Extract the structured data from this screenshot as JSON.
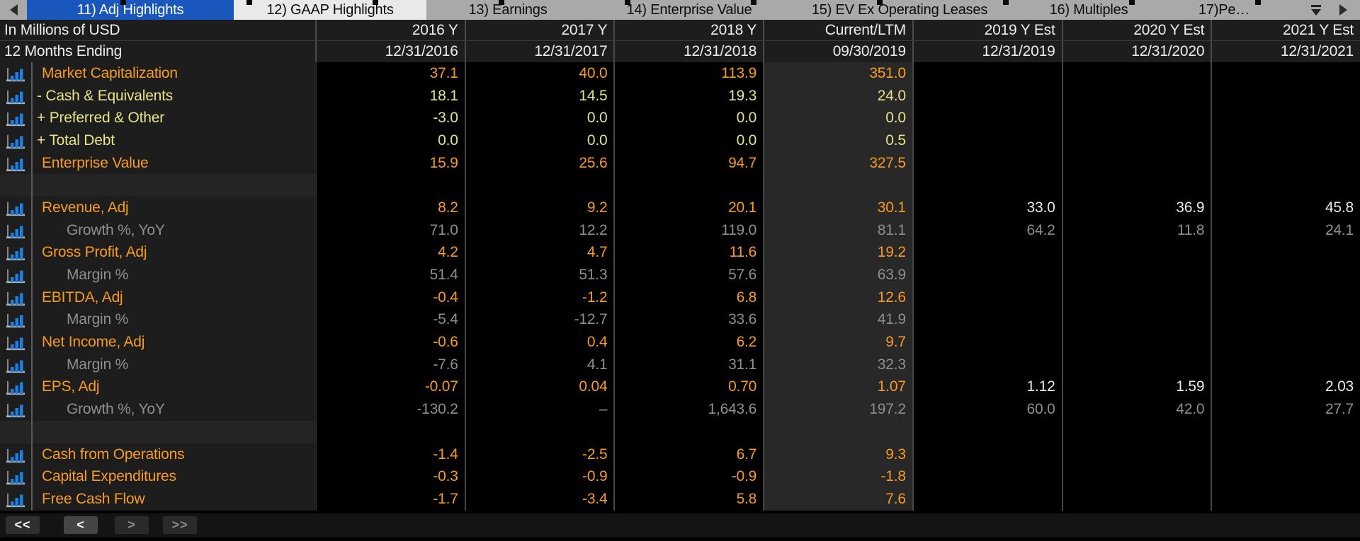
{
  "tabbar": {
    "tabs": [
      {
        "label": "11) Adj Highlights",
        "selected": true
      },
      {
        "label": "12) GAAP Highlights",
        "light": true
      },
      {
        "label": "13) Earnings"
      },
      {
        "label": "14) Enterprise Value"
      },
      {
        "label": "15) EV Ex Operating Leases"
      },
      {
        "label": "16) Multiples"
      },
      {
        "label": "17)Pe…"
      }
    ]
  },
  "table": {
    "corner": {
      "row1": "In Millions of USD",
      "row2": "12 Months Ending"
    },
    "columns": [
      {
        "year": "2016 Y",
        "date": "12/31/2016",
        "kind": "actual"
      },
      {
        "year": "2017 Y",
        "date": "12/31/2017",
        "kind": "actual"
      },
      {
        "year": "2018 Y",
        "date": "12/31/2018",
        "kind": "actual"
      },
      {
        "year": "Current/LTM",
        "date": "09/30/2019",
        "kind": "ltm"
      },
      {
        "year": "2019 Y Est",
        "date": "12/31/2019",
        "kind": "est"
      },
      {
        "year": "2020 Y Est",
        "date": "12/31/2020",
        "kind": "est"
      },
      {
        "year": "2021 Y Est",
        "date": "12/31/2021",
        "kind": "est"
      }
    ],
    "rows": [
      {
        "label": "Market Capitalization",
        "style": "main",
        "icon": true,
        "values": [
          "37.1",
          "40.0",
          "113.9",
          "351.0",
          "",
          "",
          ""
        ]
      },
      {
        "label": "- Cash & Equivalents",
        "style": "calc",
        "icon": true,
        "values": [
          "18.1",
          "14.5",
          "19.3",
          "24.0",
          "",
          "",
          ""
        ]
      },
      {
        "label": "+ Preferred & Other",
        "style": "calc",
        "icon": true,
        "values": [
          "-3.0",
          "0.0",
          "0.0",
          "0.0",
          "",
          "",
          ""
        ]
      },
      {
        "label": "+ Total Debt",
        "style": "calc",
        "icon": true,
        "values": [
          "0.0",
          "0.0",
          "0.0",
          "0.5",
          "",
          "",
          ""
        ]
      },
      {
        "label": "Enterprise Value",
        "style": "main",
        "icon": true,
        "values": [
          "15.9",
          "25.6",
          "94.7",
          "327.5",
          "",
          "",
          ""
        ]
      },
      {
        "label": "",
        "style": "spacer",
        "icon": false,
        "values": [
          "",
          "",
          "",
          "",
          "",
          "",
          ""
        ]
      },
      {
        "label": "Revenue, Adj",
        "style": "main",
        "icon": true,
        "values": [
          "8.2",
          "9.2",
          "20.1",
          "30.1",
          "33.0",
          "36.9",
          "45.8"
        ]
      },
      {
        "label": "Growth %, YoY",
        "style": "sub",
        "icon": true,
        "values": [
          "71.0",
          "12.2",
          "119.0",
          "81.1",
          "64.2",
          "11.8",
          "24.1"
        ]
      },
      {
        "label": "Gross Profit, Adj",
        "style": "main",
        "icon": true,
        "values": [
          "4.2",
          "4.7",
          "11.6",
          "19.2",
          "",
          "",
          ""
        ]
      },
      {
        "label": "Margin %",
        "style": "sub",
        "icon": true,
        "values": [
          "51.4",
          "51.3",
          "57.6",
          "63.9",
          "",
          "",
          ""
        ]
      },
      {
        "label": "EBITDA, Adj",
        "style": "main",
        "icon": true,
        "values": [
          "-0.4",
          "-1.2",
          "6.8",
          "12.6",
          "",
          "",
          ""
        ]
      },
      {
        "label": "Margin %",
        "style": "sub",
        "icon": true,
        "values": [
          "-5.4",
          "-12.7",
          "33.6",
          "41.9",
          "",
          "",
          ""
        ]
      },
      {
        "label": "Net Income, Adj",
        "style": "main",
        "icon": true,
        "values": [
          "-0.6",
          "0.4",
          "6.2",
          "9.7",
          "",
          "",
          ""
        ]
      },
      {
        "label": "Margin %",
        "style": "sub",
        "icon": true,
        "values": [
          "-7.6",
          "4.1",
          "31.1",
          "32.3",
          "",
          "",
          ""
        ]
      },
      {
        "label": "EPS, Adj",
        "style": "main",
        "icon": true,
        "values": [
          "-0.07",
          "0.04",
          "0.70",
          "1.07",
          "1.12",
          "1.59",
          "2.03"
        ]
      },
      {
        "label": "Growth %, YoY",
        "style": "sub",
        "icon": true,
        "values": [
          "-130.2",
          "–",
          "1,643.6",
          "197.2",
          "60.0",
          "42.0",
          "27.7"
        ]
      },
      {
        "label": "",
        "style": "spacer",
        "icon": false,
        "values": [
          "",
          "",
          "",
          "",
          "",
          "",
          ""
        ]
      },
      {
        "label": "Cash from Operations",
        "style": "main",
        "icon": true,
        "values": [
          "-1.4",
          "-2.5",
          "6.7",
          "9.3",
          "",
          "",
          ""
        ]
      },
      {
        "label": "Capital Expenditures",
        "style": "main",
        "icon": true,
        "values": [
          "-0.3",
          "-0.9",
          "-0.9",
          "-1.8",
          "",
          "",
          ""
        ]
      },
      {
        "label": "Free Cash Flow",
        "style": "main",
        "icon": true,
        "values": [
          "-1.7",
          "-3.4",
          "5.8",
          "7.6",
          "",
          "",
          ""
        ]
      }
    ]
  },
  "navbar": {
    "buttons": [
      {
        "label": "<<"
      },
      {
        "label": "<"
      },
      {
        "label": ">"
      },
      {
        "label": ">>"
      }
    ]
  },
  "colors": {
    "tab_selected_blue": "#1a57bd",
    "tab_bar_gray": "#a9a9a9",
    "value_orange": "#f79b22",
    "value_yellow": "#e7e387",
    "value_gray": "#8e8e8e",
    "estimate_white": "#e9e9e9",
    "icon_bar_blue": "#1b7fe4",
    "ltm_column_bg": "#282828"
  }
}
